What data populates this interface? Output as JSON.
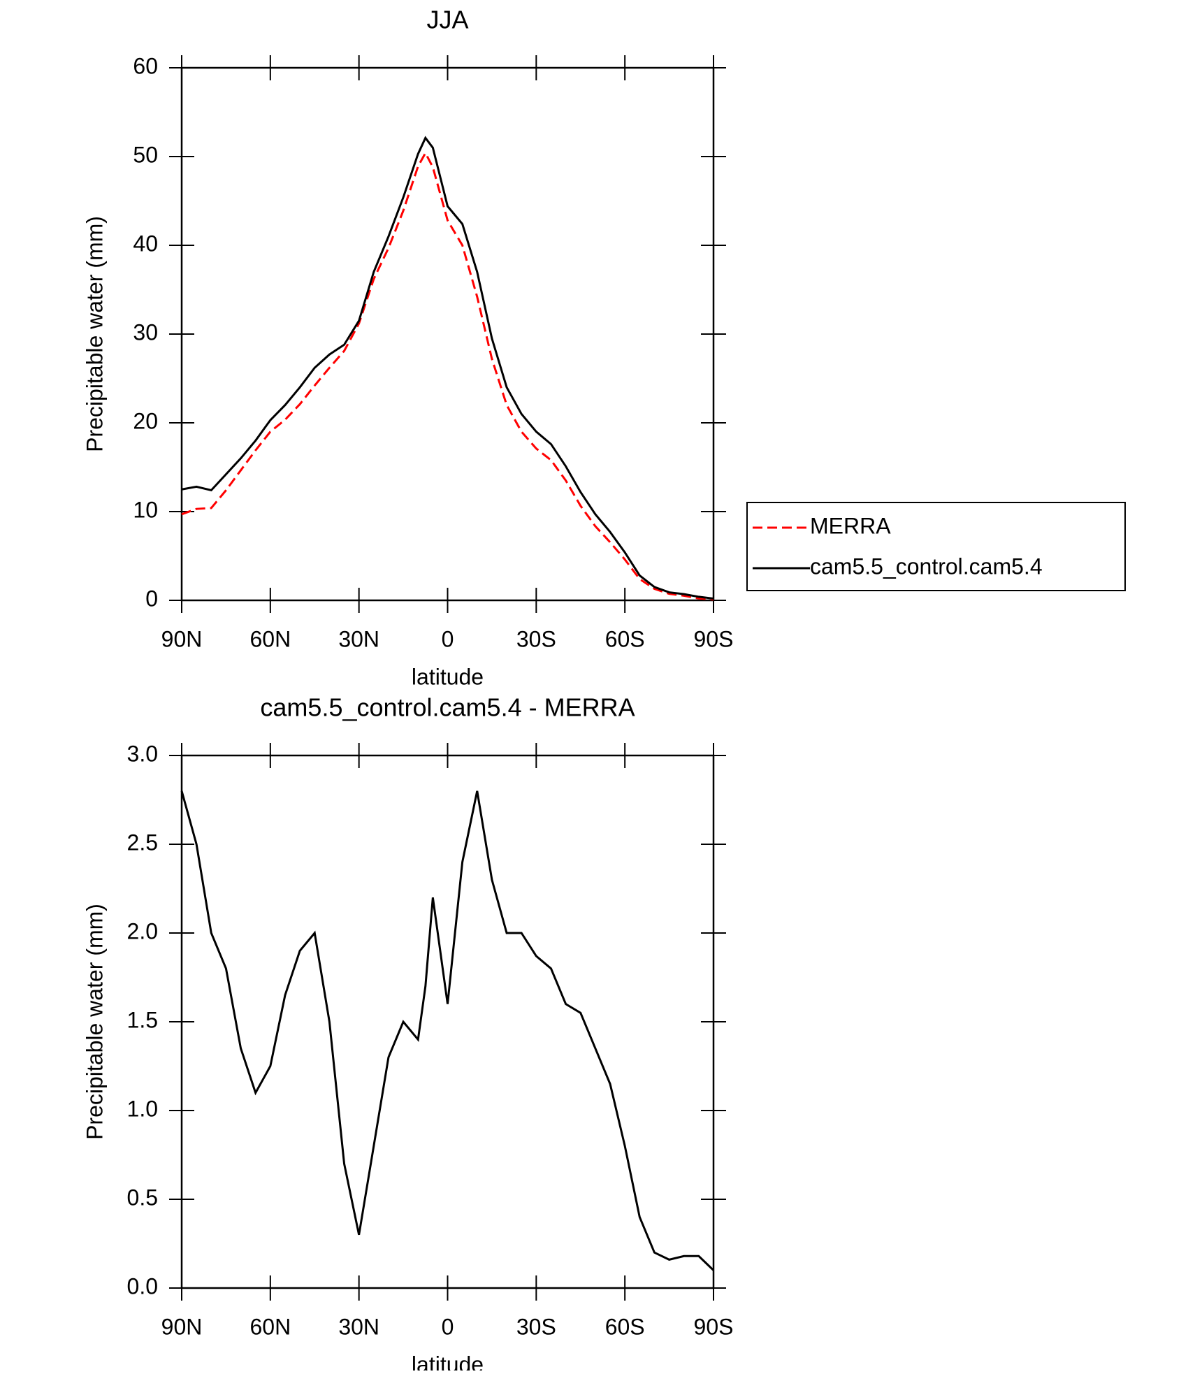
{
  "chart_data": [
    {
      "type": "line",
      "title": "JJA",
      "xlabel": "latitude",
      "ylabel": "Precipitable water (mm)",
      "x": [
        90,
        85,
        80,
        75,
        70,
        65,
        60,
        55,
        50,
        45,
        40,
        35,
        30,
        25,
        20,
        15,
        10,
        7.5,
        5,
        0,
        -5,
        -10,
        -15,
        -20,
        -25,
        -30,
        -35,
        -40,
        -45,
        -50,
        -55,
        -60,
        -65,
        -70,
        -75,
        -80,
        -85,
        -90
      ],
      "series": [
        {
          "name": "MERRA",
          "color": "#ff0000",
          "dash": true,
          "values": [
            9.7,
            10.3,
            10.4,
            12.4,
            14.65,
            16.9,
            19.0,
            20.35,
            22.1,
            24.2,
            26.2,
            28.1,
            31.2,
            36.2,
            39.7,
            43.9,
            48.9,
            50.4,
            48.8,
            42.8,
            40.0,
            34.2,
            27.2,
            22.0,
            19.0,
            17.1,
            15.8,
            13.5,
            10.65,
            8.35,
            6.55,
            4.6,
            2.4,
            1.3,
            0.74,
            0.52,
            0.22,
            0.1
          ]
        },
        {
          "name": "cam5.5_control.cam5.4",
          "color": "#000000",
          "dash": false,
          "values": [
            12.5,
            12.8,
            12.4,
            14.2,
            16.0,
            18.0,
            20.3,
            22.0,
            24.0,
            26.2,
            27.7,
            28.8,
            31.5,
            37.0,
            41.0,
            45.4,
            50.3,
            52.1,
            51.0,
            44.4,
            42.4,
            37.0,
            29.5,
            24.0,
            21.0,
            19.0,
            17.6,
            15.1,
            12.2,
            9.7,
            7.7,
            5.4,
            2.8,
            1.5,
            0.9,
            0.7,
            0.4,
            0.2
          ]
        }
      ],
      "xlim": [
        90,
        -90
      ],
      "xticks": [
        {
          "value": 90,
          "label": "90N"
        },
        {
          "value": 60,
          "label": "60N"
        },
        {
          "value": 30,
          "label": "30N"
        },
        0,
        {
          "value": -30,
          "label": "30S"
        },
        {
          "value": -60,
          "label": "60S"
        },
        {
          "value": -90,
          "label": "90S"
        }
      ],
      "ylim": [
        0,
        60
      ],
      "yticks": [
        0,
        10,
        20,
        30,
        40,
        50,
        60
      ],
      "legend": "right"
    },
    {
      "type": "line",
      "title": "cam5.5_control.cam5.4 - MERRA",
      "xlabel": "latitude",
      "ylabel": "Precipitable water (mm)",
      "x": [
        90,
        85,
        80,
        75,
        70,
        65,
        60,
        55,
        50,
        45,
        40,
        35,
        30,
        25,
        20,
        15,
        10,
        7.5,
        5,
        0,
        -5,
        -10,
        -15,
        -20,
        -25,
        -30,
        -35,
        -40,
        -45,
        -50,
        -55,
        -60,
        -65,
        -70,
        -75,
        -80,
        -85,
        -90
      ],
      "series": [
        {
          "color": "#000000",
          "dash": false,
          "values": [
            2.8,
            2.5,
            2.0,
            1.8,
            1.35,
            1.1,
            1.25,
            1.65,
            1.9,
            2.0,
            1.5,
            0.7,
            0.3,
            0.8,
            1.3,
            1.5,
            1.4,
            1.7,
            2.2,
            1.6,
            2.4,
            2.8,
            2.3,
            2.0,
            2.0,
            1.87,
            1.8,
            1.6,
            1.55,
            1.35,
            1.15,
            0.8,
            0.4,
            0.2,
            0.16,
            0.18,
            0.18,
            0.1
          ]
        }
      ],
      "xlim": [
        90,
        -90
      ],
      "xticks": [
        {
          "value": 90,
          "label": "90N"
        },
        {
          "value": 60,
          "label": "60N"
        },
        {
          "value": 30,
          "label": "30N"
        },
        0,
        {
          "value": -30,
          "label": "30S"
        },
        {
          "value": -60,
          "label": "60S"
        },
        {
          "value": -90,
          "label": "90S"
        }
      ],
      "ylim": [
        0,
        3
      ],
      "yticks": [
        {
          "value": 0,
          "label": "0.0"
        },
        {
          "value": 0.5,
          "label": "0.5"
        },
        {
          "value": 1,
          "label": "1.0"
        },
        {
          "value": 1.5,
          "label": "1.5"
        },
        {
          "value": 2,
          "label": "2.0"
        },
        {
          "value": 2.5,
          "label": "2.5"
        },
        {
          "value": 3,
          "label": "3.0"
        }
      ]
    }
  ]
}
